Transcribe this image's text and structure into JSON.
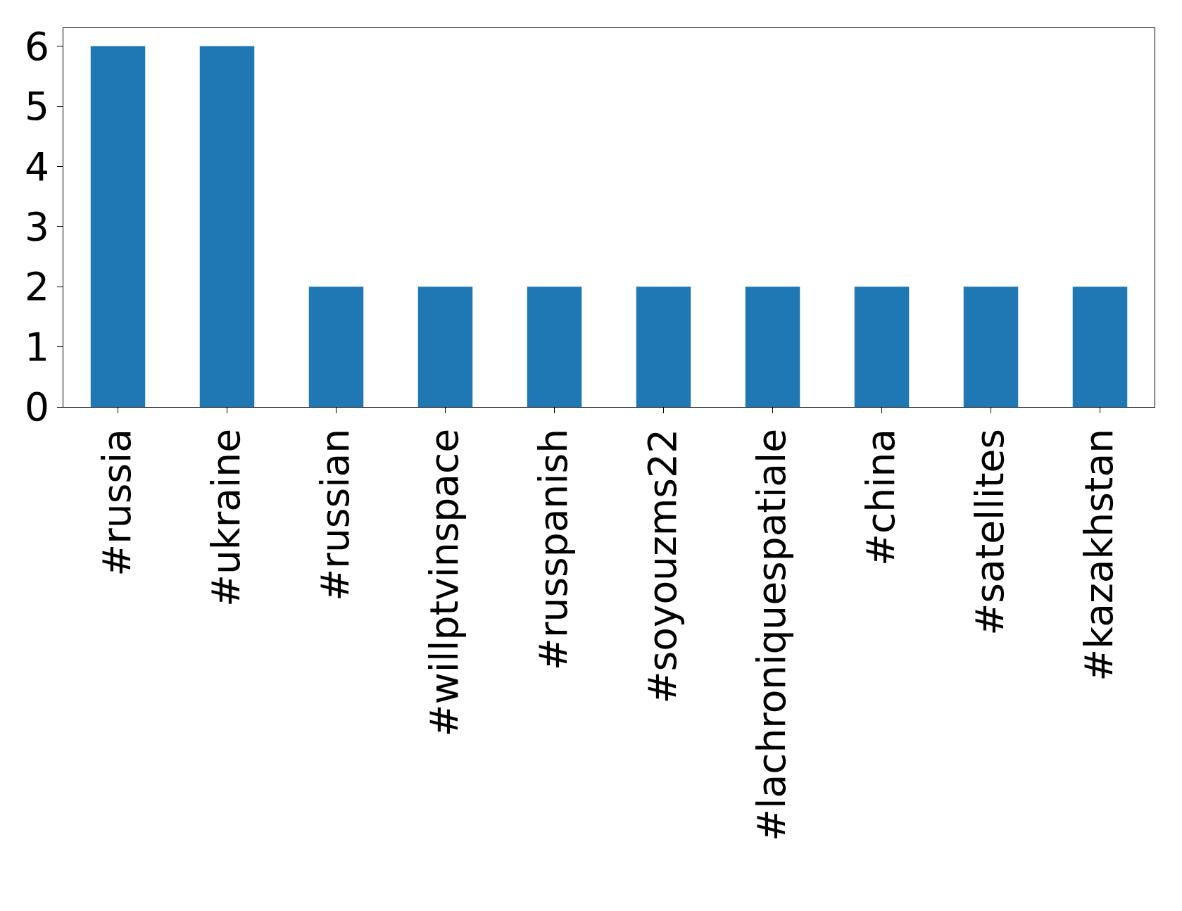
{
  "chart_data": {
    "type": "bar",
    "categories": [
      "#russia",
      "#ukraine",
      "#russian",
      "#willptvinspace",
      "#russpanish",
      "#soyouzms22",
      "#lachroniquespatiale",
      "#china",
      "#satellites",
      "#kazakhstan"
    ],
    "values": [
      6,
      6,
      2,
      2,
      2,
      2,
      2,
      2,
      2,
      2
    ],
    "color": "#1f77b4",
    "ylim": [
      0,
      6.3
    ],
    "yticks": [
      0,
      1,
      2,
      3,
      4,
      5,
      6
    ]
  }
}
